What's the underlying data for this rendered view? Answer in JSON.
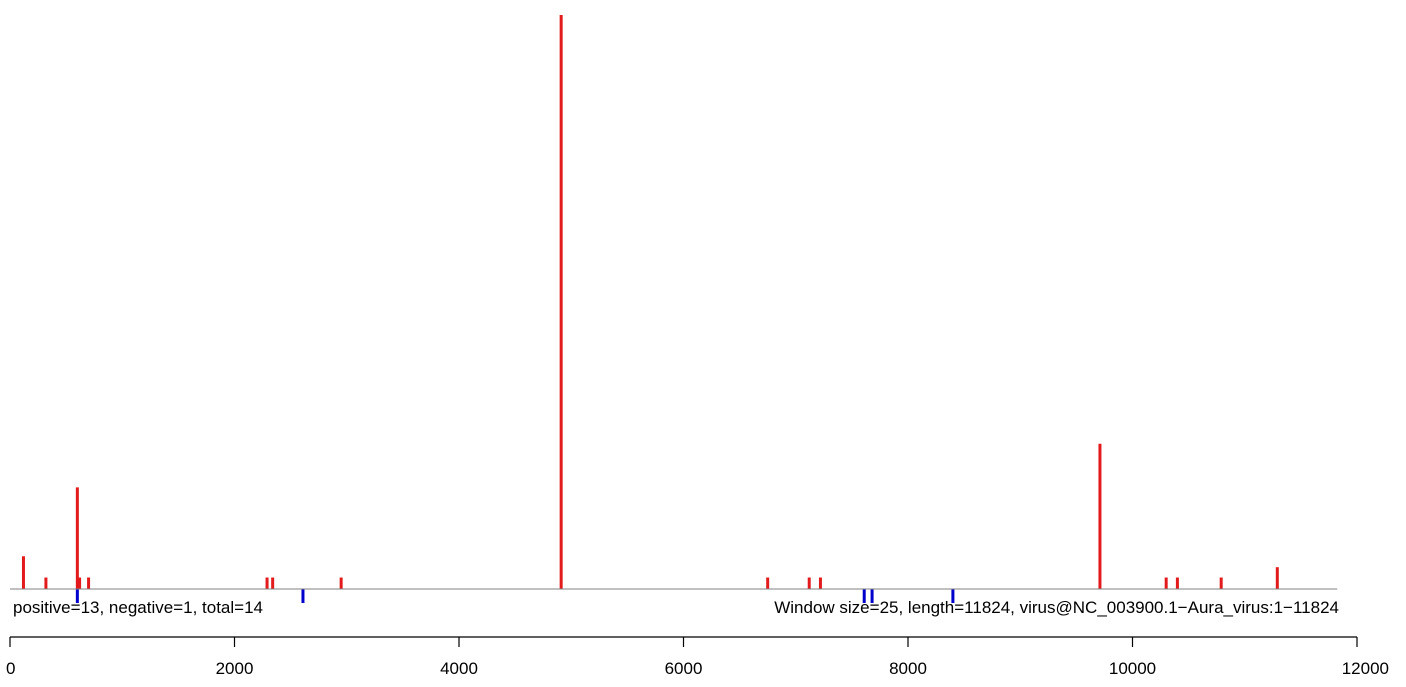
{
  "chart_data": {
    "type": "bar",
    "title": "",
    "xlabel": "",
    "ylabel": "",
    "xlim": [
      0,
      12000
    ],
    "x_ticks": [
      0,
      2000,
      4000,
      6000,
      8000,
      10000,
      12000
    ],
    "grid": false,
    "annotations": {
      "left": "positive=13, negative=1, total=14",
      "right": "Window size=25, length=11824, virus@NC_003900.1−Aura_virus:1−11824"
    },
    "colors": {
      "positive": "#e31a1c",
      "negative": "#0000cc",
      "baseline": "#808080",
      "axis": "#000000"
    },
    "positive_max": 100,
    "negative_max": 10,
    "series": [
      {
        "name": "positive",
        "positions": [
          120,
          320,
          600,
          620,
          700,
          2290,
          2340,
          2950,
          4910,
          6750,
          7120,
          7220,
          9710,
          10300,
          10400,
          10790,
          11290
        ],
        "values": [
          5.7,
          2,
          17.7,
          2,
          2,
          2,
          2,
          2,
          100,
          2,
          2,
          2,
          25.3,
          2,
          2,
          2,
          3.8
        ]
      },
      {
        "name": "negative",
        "positions": [
          600,
          2610,
          7610,
          7680,
          8400
        ],
        "values": [
          10,
          10,
          10,
          10,
          10
        ]
      }
    ]
  }
}
